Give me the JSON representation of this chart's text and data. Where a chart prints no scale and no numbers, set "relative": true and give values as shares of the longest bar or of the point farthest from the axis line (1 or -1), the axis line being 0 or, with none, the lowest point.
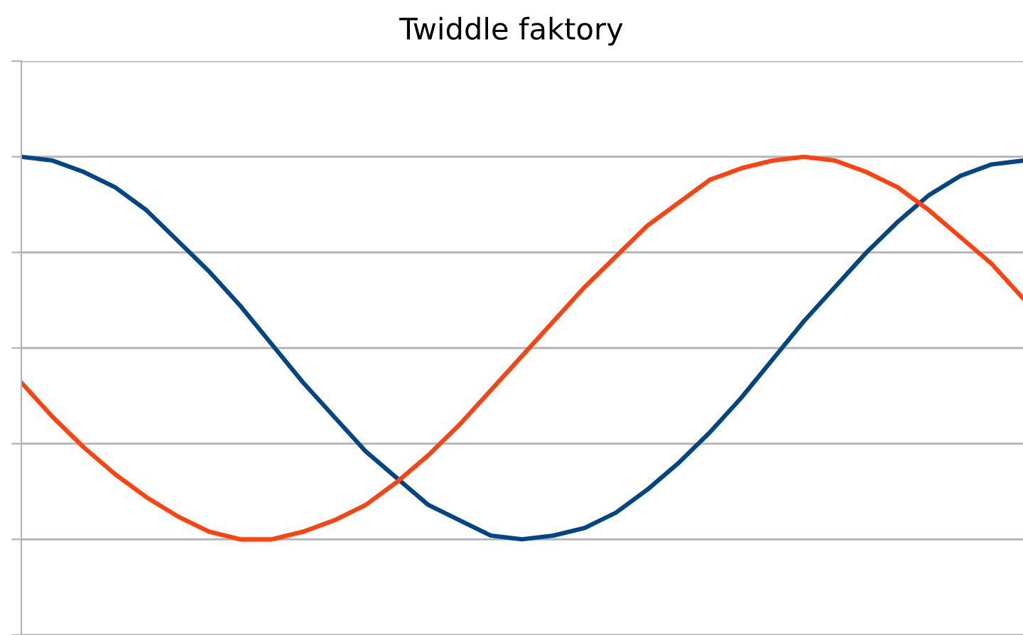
{
  "chart_data": {
    "type": "line",
    "title": "Twiddle faktory",
    "relative": true,
    "grid": "y",
    "marker": "none",
    "line_style": "solid",
    "categories": [
      null,
      null,
      null,
      null,
      null,
      null,
      null,
      null,
      null,
      null,
      null,
      null,
      null,
      null,
      null,
      null,
      null,
      null,
      null,
      null,
      null,
      null,
      null,
      null,
      null,
      null,
      null,
      null,
      null,
      null,
      null,
      null,
      null
    ],
    "series": [
      {
        "color": "#004586",
        "values": [
          1.0,
          0.99,
          0.96,
          0.92,
          0.86,
          0.78,
          0.7,
          0.61,
          0.51,
          0.41,
          0.32,
          0.23,
          0.16,
          0.09,
          0.05,
          0.01,
          0.0,
          0.01,
          0.03,
          0.07,
          0.13,
          0.2,
          0.28,
          0.37,
          0.47,
          0.57,
          0.66,
          0.75,
          0.83,
          0.9,
          0.95,
          0.98,
          0.99
        ]
      },
      {
        "color": "#ff420e",
        "values": [
          0.41,
          0.32,
          0.24,
          0.17,
          0.11,
          0.06,
          0.02,
          0.0,
          0.0,
          0.02,
          0.05,
          0.09,
          0.15,
          0.22,
          0.3,
          0.39,
          0.48,
          0.57,
          0.66,
          0.74,
          0.82,
          0.88,
          0.94,
          0.97,
          0.99,
          1.0,
          0.99,
          0.96,
          0.92,
          0.86,
          0.79,
          0.72,
          0.63
        ]
      }
    ]
  }
}
